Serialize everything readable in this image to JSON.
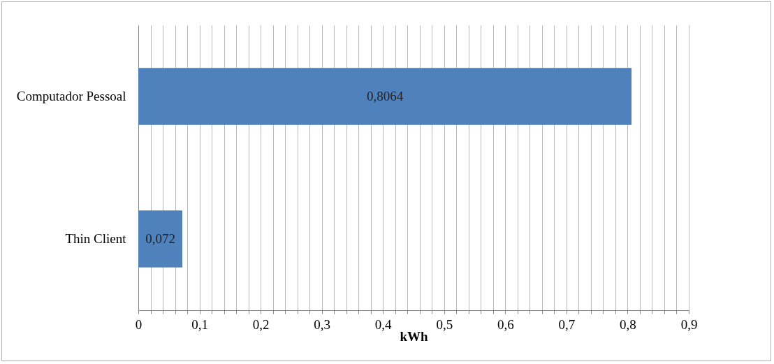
{
  "chart_data": {
    "type": "bar",
    "orientation": "horizontal",
    "xlabel": "kWh",
    "categories": [
      "Computador Pessoal",
      "Thin Client"
    ],
    "values": [
      0.8064,
      0.072
    ],
    "value_labels": [
      "0,8064",
      "0,072"
    ],
    "color": "#4f81bd",
    "xlim": [
      0,
      0.9
    ],
    "xticks": [
      0,
      {
        "value": 0.02,
        "label": null
      },
      {
        "value": 0.04,
        "label": null
      },
      {
        "value": 0.06,
        "label": null
      },
      {
        "value": 0.08,
        "label": null
      },
      {
        "value": 0.1,
        "label": "0,1"
      },
      {
        "value": 0.12,
        "label": null
      },
      {
        "value": 0.14,
        "label": null
      },
      {
        "value": 0.16,
        "label": null
      },
      {
        "value": 0.18,
        "label": null
      },
      {
        "value": 0.2,
        "label": "0,2"
      },
      {
        "value": 0.22,
        "label": null
      },
      {
        "value": 0.24,
        "label": null
      },
      {
        "value": 0.26,
        "label": null
      },
      {
        "value": 0.28,
        "label": null
      },
      {
        "value": 0.3,
        "label": "0,3"
      },
      {
        "value": 0.32,
        "label": null
      },
      {
        "value": 0.34,
        "label": null
      },
      {
        "value": 0.36,
        "label": null
      },
      {
        "value": 0.38,
        "label": null
      },
      {
        "value": 0.4,
        "label": "0,4"
      },
      {
        "value": 0.42,
        "label": null
      },
      {
        "value": 0.44,
        "label": null
      },
      {
        "value": 0.46,
        "label": null
      },
      {
        "value": 0.48,
        "label": null
      },
      {
        "value": 0.5,
        "label": "0,5"
      },
      {
        "value": 0.52,
        "label": null
      },
      {
        "value": 0.54,
        "label": null
      },
      {
        "value": 0.56,
        "label": null
      },
      {
        "value": 0.58,
        "label": null
      },
      {
        "value": 0.6,
        "label": "0,6"
      },
      {
        "value": 0.62,
        "label": null
      },
      {
        "value": 0.64,
        "label": null
      },
      {
        "value": 0.66,
        "label": null
      },
      {
        "value": 0.68,
        "label": null
      },
      {
        "value": 0.7,
        "label": "0,7"
      },
      {
        "value": 0.72,
        "label": null
      },
      {
        "value": 0.74,
        "label": null
      },
      {
        "value": 0.76,
        "label": null
      },
      {
        "value": 0.78,
        "label": null
      },
      {
        "value": 0.8,
        "label": "0,8"
      },
      {
        "value": 0.82,
        "label": null
      },
      {
        "value": 0.84,
        "label": null
      },
      {
        "value": 0.86,
        "label": null
      },
      {
        "value": 0.88,
        "label": null
      },
      {
        "value": 0.9,
        "label": "0,9"
      }
    ],
    "grid": "x"
  }
}
